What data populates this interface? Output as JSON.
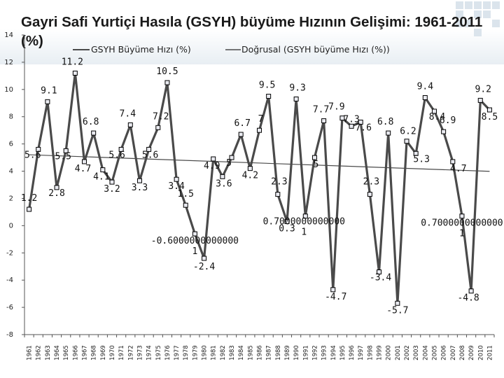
{
  "chart_data": {
    "type": "line",
    "title": "Gayri Safi Yurtiçi Hasıla (GSYH) büyüme Hızının Gelişimi: 1961-2011 (%)",
    "xlabel": "",
    "ylabel": "",
    "ylim": [
      -8,
      14
    ],
    "yticks": [
      14,
      12,
      10,
      8,
      6,
      4,
      2,
      0,
      -2,
      -4,
      -6,
      -8
    ],
    "grid": false,
    "legend_position": "top",
    "x": [
      1961,
      1962,
      1963,
      1964,
      1965,
      1966,
      1967,
      1968,
      1969,
      1970,
      1971,
      1972,
      1973,
      1974,
      1975,
      1976,
      1977,
      1978,
      1979,
      1980,
      1981,
      1982,
      1983,
      1984,
      1985,
      1986,
      1987,
      1988,
      1989,
      1990,
      1991,
      1992,
      1993,
      1994,
      1995,
      1996,
      1997,
      1998,
      1999,
      2000,
      2001,
      2002,
      2003,
      2004,
      2005,
      2006,
      2007,
      2008,
      2009,
      2010,
      2011
    ],
    "series": [
      {
        "name": "GSYH Büyüme Hızı (%)",
        "color": "#4a4a4a",
        "values": [
          1.2,
          5.6,
          9.1,
          2.8,
          5.5,
          11.2,
          4.7,
          6.8,
          4.1,
          3.2,
          5.6,
          7.4,
          3.3,
          5.6,
          7.2,
          10.5,
          3.4,
          1.5,
          -0.6000000000001,
          -2.4,
          4.9,
          3.6,
          5,
          6.7,
          4.2,
          7,
          9.5,
          2.3,
          0.3,
          9.3,
          0.7,
          5,
          7.7,
          -4.7,
          7.9,
          7.3,
          7.6,
          2.3,
          -3.4,
          6.8,
          -5.7,
          6.2,
          5.3,
          9.4,
          8.4,
          6.9,
          4.7,
          0.7,
          -4.8,
          9.2,
          8.5
        ],
        "labels": [
          "1.2",
          "5.6",
          "9.1",
          "2.8",
          "5.5",
          "11.2",
          "4.7",
          "6.8",
          "4.1",
          "3.2",
          "5.6",
          "7.4",
          "3.3",
          "5.6",
          "7.2",
          "10.5",
          "3.4",
          "1.5",
          "-0.6000000000000 1",
          "-2.4",
          "4.9",
          "3.6",
          "5",
          "6.7",
          "4.2",
          "7",
          "9.5",
          "2.3",
          "0.3",
          "9.3",
          "0.7000000000000 1",
          "5",
          "7.7",
          "-4.7",
          "7.9",
          "7.3",
          "7.6",
          "2.3",
          "-3.4",
          "6.8",
          "-5.7",
          "6.2",
          "5.3",
          "9.4",
          "8.4",
          "6.9",
          "4.7",
          "0.7000000000000 1",
          "-4.8",
          "9.2",
          "8.5"
        ]
      },
      {
        "name": "Doğrusal (GSYH büyüme Hızı (%))",
        "color": "#4a4a4a",
        "trend": true
      }
    ],
    "palette": {
      "line": "#4a4a4a",
      "marker_outer": "#000000",
      "marker_inner": "#e9eaf0"
    }
  }
}
